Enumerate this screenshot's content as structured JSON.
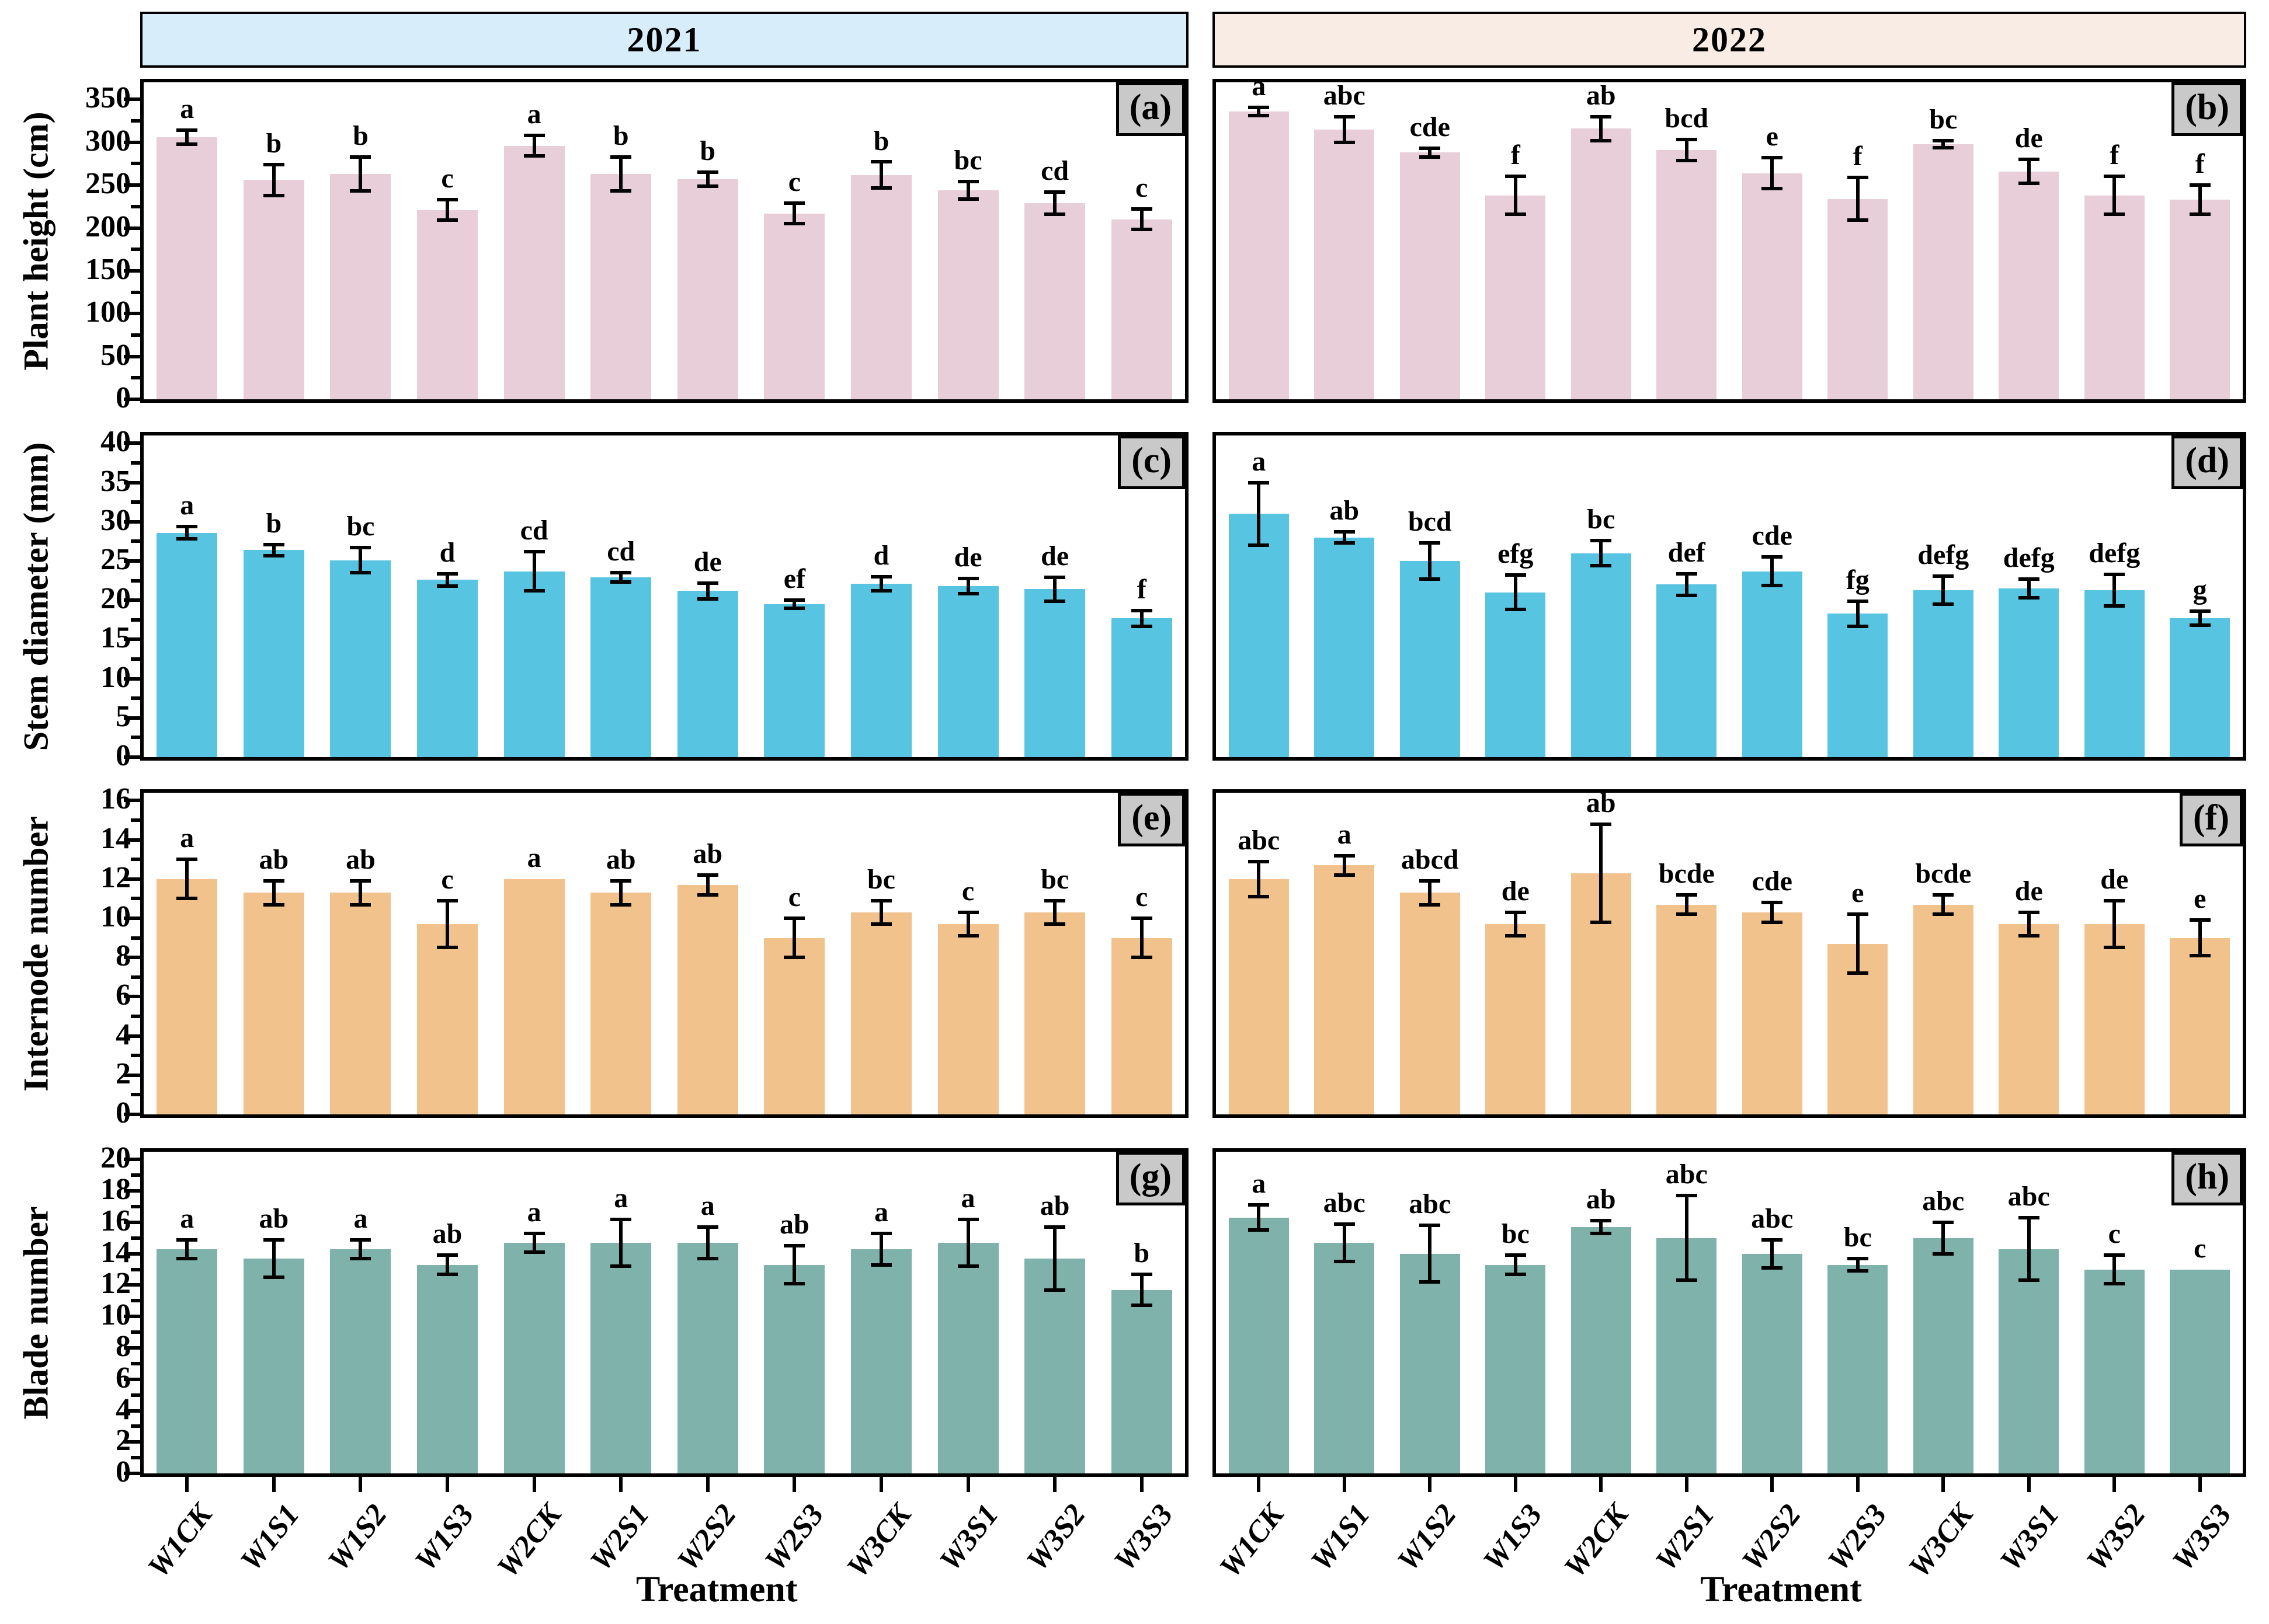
{
  "figure": {
    "columns": [
      {
        "year": "2021",
        "band_color": "#d7eefa"
      },
      {
        "year": "2022",
        "band_color": "#f8ece4"
      }
    ],
    "xlabel": "Treatment",
    "treatments": [
      "W1CK",
      "W1S1",
      "W1S2",
      "W1S3",
      "W2CK",
      "W2S1",
      "W2S2",
      "W2S3",
      "W3CK",
      "W3S1",
      "W3S2",
      "W3S3"
    ],
    "panel_badges": [
      "(a)",
      "(b)",
      "(c)",
      "(d)",
      "(e)",
      "(f)",
      "(g)",
      "(h)"
    ],
    "badge_bg": "#c9c9c9",
    "axis_color": "#000000"
  },
  "chart_data": [
    {
      "type": "bar",
      "panel": "(a)",
      "year": "2021",
      "ylabel": "Plant height (cm)",
      "bar_color": "#e7ced8",
      "ylim": [
        0,
        370
      ],
      "yticks": [
        0,
        50,
        100,
        150,
        200,
        250,
        300,
        350
      ],
      "minor_step": 25,
      "grid": false,
      "categories": [
        "W1CK",
        "W1S1",
        "W1S2",
        "W1S3",
        "W2CK",
        "W2S1",
        "W2S2",
        "W2S3",
        "W3CK",
        "W3S1",
        "W3S2",
        "W3S3"
      ],
      "values": [
        306,
        256,
        263,
        221,
        296,
        263,
        257,
        217,
        262,
        244,
        229,
        210
      ],
      "errors": [
        8,
        18,
        20,
        12,
        12,
        20,
        8,
        12,
        15,
        10,
        13,
        12
      ],
      "letters": [
        "a",
        "b",
        "b",
        "c",
        "a",
        "b",
        "b",
        "c",
        "b",
        "bc",
        "cd",
        "c"
      ]
    },
    {
      "type": "bar",
      "panel": "(b)",
      "year": "2022",
      "ylabel": "Plant height (cm)",
      "bar_color": "#e7ced8",
      "ylim": [
        0,
        370
      ],
      "yticks": [
        0,
        50,
        100,
        150,
        200,
        250,
        300,
        350
      ],
      "minor_step": 25,
      "grid": false,
      "categories": [
        "W1CK",
        "W1S1",
        "W1S2",
        "W1S3",
        "W2CK",
        "W2S1",
        "W2S2",
        "W2S3",
        "W3CK",
        "W3S1",
        "W3S2",
        "W3S3"
      ],
      "values": [
        336,
        315,
        288,
        238,
        316,
        291,
        264,
        234,
        298,
        266,
        238,
        233
      ],
      "errors": [
        5,
        15,
        5,
        22,
        14,
        12,
        18,
        25,
        4,
        14,
        22,
        17
      ],
      "letters": [
        "a",
        "abc",
        "cde",
        "f",
        "ab",
        "bcd",
        "e",
        "f",
        "bc",
        "de",
        "f",
        "f"
      ]
    },
    {
      "type": "bar",
      "panel": "(c)",
      "year": "2021",
      "ylabel": "Stem diameter (mm)",
      "bar_color": "#57c4e1",
      "ylim": [
        0,
        41
      ],
      "yticks": [
        0,
        5,
        10,
        15,
        20,
        25,
        30,
        35,
        40
      ],
      "minor_step": 2.5,
      "grid": false,
      "categories": [
        "W1CK",
        "W1S1",
        "W1S2",
        "W1S3",
        "W2CK",
        "W2S1",
        "W2S2",
        "W2S3",
        "W3CK",
        "W3S1",
        "W3S2",
        "W3S3"
      ],
      "values": [
        28.6,
        26.4,
        25.1,
        22.6,
        23.7,
        22.9,
        21.2,
        19.5,
        22.1,
        21.8,
        21.4,
        17.7
      ],
      "errors": [
        0.8,
        0.7,
        1.6,
        0.8,
        2.5,
        0.6,
        1.0,
        0.5,
        0.9,
        1.0,
        1.5,
        1.0
      ],
      "letters": [
        "a",
        "b",
        "bc",
        "d",
        "cd",
        "cd",
        "de",
        "ef",
        "d",
        "de",
        "de",
        "f"
      ]
    },
    {
      "type": "bar",
      "panel": "(d)",
      "year": "2022",
      "ylabel": "Stem diameter (mm)",
      "bar_color": "#57c4e1",
      "ylim": [
        0,
        41
      ],
      "yticks": [
        0,
        5,
        10,
        15,
        20,
        25,
        30,
        35,
        40
      ],
      "minor_step": 2.5,
      "grid": false,
      "categories": [
        "W1CK",
        "W1S1",
        "W1S2",
        "W1S3",
        "W2CK",
        "W2S1",
        "W2S2",
        "W2S3",
        "W3CK",
        "W3S1",
        "W3S2",
        "W3S3"
      ],
      "values": [
        31.0,
        28.0,
        25.0,
        21.0,
        26.0,
        22.0,
        23.7,
        18.3,
        21.3,
        21.5,
        21.3,
        17.7
      ],
      "errors": [
        4.0,
        0.7,
        2.3,
        2.2,
        1.6,
        1.4,
        1.8,
        1.6,
        1.8,
        1.2,
        2.0,
        0.9
      ],
      "letters": [
        "a",
        "ab",
        "bcd",
        "efg",
        "bc",
        "def",
        "cde",
        "fg",
        "defg",
        "defg",
        "defg",
        "g"
      ]
    },
    {
      "type": "bar",
      "panel": "(e)",
      "year": "2021",
      "ylabel": "Internode number",
      "bar_color": "#f1c28c",
      "ylim": [
        0,
        16.4
      ],
      "yticks": [
        0,
        2,
        4,
        6,
        8,
        10,
        12,
        14,
        16
      ],
      "minor_step": 1,
      "grid": false,
      "categories": [
        "W1CK",
        "W1S1",
        "W1S2",
        "W1S3",
        "W2CK",
        "W2S1",
        "W2S2",
        "W2S3",
        "W3CK",
        "W3S1",
        "W3S2",
        "W3S3"
      ],
      "values": [
        12.0,
        11.3,
        11.3,
        9.7,
        12.0,
        11.3,
        11.7,
        9.0,
        10.3,
        9.7,
        10.3,
        9.0
      ],
      "errors": [
        1.0,
        0.6,
        0.6,
        1.2,
        0,
        0.6,
        0.5,
        1.0,
        0.6,
        0.6,
        0.6,
        1.0
      ],
      "letters": [
        "a",
        "ab",
        "ab",
        "c",
        "a",
        "ab",
        "ab",
        "c",
        "bc",
        "c",
        "bc",
        "c"
      ]
    },
    {
      "type": "bar",
      "panel": "(f)",
      "year": "2022",
      "ylabel": "Internode number",
      "bar_color": "#f1c28c",
      "ylim": [
        0,
        16.4
      ],
      "yticks": [
        0,
        2,
        4,
        6,
        8,
        10,
        12,
        14,
        16
      ],
      "minor_step": 1,
      "grid": false,
      "categories": [
        "W1CK",
        "W1S1",
        "W1S2",
        "W1S3",
        "W2CK",
        "W2S1",
        "W2S2",
        "W2S3",
        "W3CK",
        "W3S1",
        "W3S2",
        "W3S3"
      ],
      "values": [
        12.0,
        12.7,
        11.3,
        9.7,
        12.3,
        10.7,
        10.3,
        8.7,
        10.7,
        9.7,
        9.7,
        9.0
      ],
      "errors": [
        0.9,
        0.5,
        0.6,
        0.6,
        2.5,
        0.5,
        0.5,
        1.5,
        0.5,
        0.6,
        1.2,
        0.9
      ],
      "letters": [
        "abc",
        "a",
        "abcd",
        "de",
        "ab",
        "bcde",
        "cde",
        "e",
        "bcde",
        "de",
        "de",
        "e"
      ]
    },
    {
      "type": "bar",
      "panel": "(g)",
      "year": "2021",
      "ylabel": "Blade number",
      "bar_color": "#7fb2aa",
      "ylim": [
        0,
        20.5
      ],
      "yticks": [
        0,
        2,
        4,
        6,
        8,
        10,
        12,
        14,
        16,
        18,
        20
      ],
      "minor_step": 1,
      "grid": false,
      "categories": [
        "W1CK",
        "W1S1",
        "W1S2",
        "W1S3",
        "W2CK",
        "W2S1",
        "W2S2",
        "W2S3",
        "W3CK",
        "W3S1",
        "W3S2",
        "W3S3"
      ],
      "values": [
        14.3,
        13.7,
        14.3,
        13.3,
        14.7,
        14.7,
        14.7,
        13.3,
        14.3,
        14.7,
        13.7,
        11.7
      ],
      "errors": [
        0.6,
        1.2,
        0.6,
        0.6,
        0.6,
        1.5,
        1.0,
        1.2,
        1.0,
        1.5,
        2.0,
        1.0
      ],
      "letters": [
        "a",
        "ab",
        "a",
        "ab",
        "a",
        "a",
        "a",
        "ab",
        "a",
        "a",
        "ab",
        "b"
      ]
    },
    {
      "type": "bar",
      "panel": "(h)",
      "year": "2022",
      "ylabel": "Blade number",
      "bar_color": "#7fb2aa",
      "ylim": [
        0,
        20.5
      ],
      "yticks": [
        0,
        2,
        4,
        6,
        8,
        10,
        12,
        14,
        16,
        18,
        20
      ],
      "minor_step": 1,
      "grid": false,
      "categories": [
        "W1CK",
        "W1S1",
        "W1S2",
        "W1S3",
        "W2CK",
        "W2S1",
        "W2S2",
        "W2S3",
        "W3CK",
        "W3S1",
        "W3S2",
        "W3S3"
      ],
      "values": [
        16.3,
        14.7,
        14.0,
        13.3,
        15.7,
        15.0,
        14.0,
        13.3,
        15.0,
        14.3,
        13.0,
        13.0
      ],
      "errors": [
        0.8,
        1.2,
        1.8,
        0.6,
        0.4,
        2.7,
        0.9,
        0.4,
        1.0,
        2.0,
        0.9,
        0
      ],
      "letters": [
        "a",
        "abc",
        "abc",
        "bc",
        "ab",
        "abc",
        "abc",
        "bc",
        "abc",
        "abc",
        "c",
        "c"
      ]
    }
  ]
}
